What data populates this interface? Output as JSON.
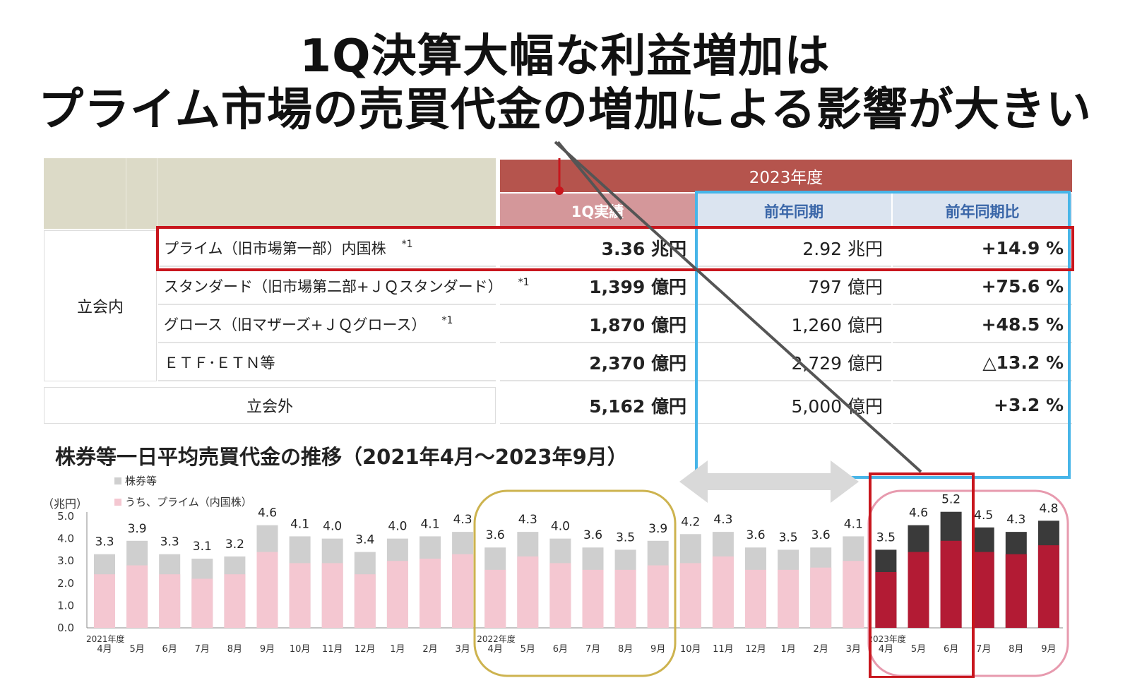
{
  "slide": {
    "headline_line1": "1Q決算大幅な利益増加は",
    "headline_line2": "プライム市場の売買代金の増加による影響が大きい"
  },
  "table": {
    "fiscal_year_header": "2023年度",
    "col_actual": "1Q実績",
    "col_prev": "前年同期",
    "col_ratio": "前年同期比",
    "group_label": "立会内",
    "rows": [
      {
        "label": "プライム（旧市場第一部）内国株",
        "note": "*1",
        "actual": "3.36 兆円",
        "prev": "2.92 兆円",
        "ratio": "+14.9 %"
      },
      {
        "label": "スタンダード（旧市場第二部+ＪＱスタンダード）",
        "note": "*1",
        "actual": "1,399 億円",
        "prev": "797 億円",
        "ratio": "+75.6 %"
      },
      {
        "label": "グロース（旧マザーズ+ＪＱグロース）",
        "note": "*1",
        "actual": "1,870 億円",
        "prev": "1,260 億円",
        "ratio": "+48.5 %"
      },
      {
        "label": "ＥＴＦ･ＥＴＮ等",
        "note": "",
        "actual": "2,370 億円",
        "prev": "2,729 億円",
        "ratio": "△13.2 %"
      }
    ],
    "offfloor": {
      "label": "立会外",
      "actual": "5,162 億円",
      "prev": "5,000 億円",
      "ratio": "+3.2 %"
    }
  },
  "colors": {
    "header_red": "#b5544d",
    "subheader_pink": "#d4979a",
    "subheader_blue": "#dbe4f0",
    "beige": "#dcdac7",
    "highlight_red": "#c8161d",
    "highlight_blue": "#47b5e8",
    "bar_gray": "#cfcfcf",
    "bar_pink": "#f4c7d1",
    "bar_dark": "#3a3a3a",
    "bar_red": "#b31b34",
    "circle_gold": "#cdb34f",
    "circle_pink": "#e79aae"
  },
  "chart_data": {
    "type": "bar",
    "title": "株券等一日平均売買代金の推移（2021年4月～2023年9月）",
    "ylabel": "（兆円）",
    "ylim": [
      0,
      5.0
    ],
    "yticks": [
      "0.0",
      "1.0",
      "2.0",
      "3.0",
      "4.0",
      "5.0"
    ],
    "legend": [
      "株券等",
      "うち、プライム（内国株）"
    ],
    "fiscal_labels": [
      "2021年度",
      "2022年度",
      "2023年度"
    ],
    "categories": [
      "4月",
      "5月",
      "6月",
      "7月",
      "8月",
      "9月",
      "10月",
      "11月",
      "12月",
      "1月",
      "2月",
      "3月",
      "4月",
      "5月",
      "6月",
      "7月",
      "8月",
      "9月",
      "10月",
      "11月",
      "12月",
      "1月",
      "2月",
      "3月",
      "4月",
      "5月",
      "6月",
      "7月",
      "8月",
      "9月"
    ],
    "series": [
      {
        "name": "株券等",
        "values": [
          3.3,
          3.9,
          3.3,
          3.1,
          3.2,
          4.6,
          4.1,
          4.0,
          3.4,
          4.0,
          4.1,
          4.3,
          3.6,
          4.3,
          4.0,
          3.6,
          3.5,
          3.9,
          4.2,
          4.3,
          3.6,
          3.5,
          3.6,
          4.1,
          3.5,
          4.6,
          5.2,
          4.5,
          4.3,
          4.8
        ],
        "labels": [
          "3.3",
          "3.9",
          "3.3",
          "3.1",
          "3.2",
          "4.6",
          "4.1",
          "4.0",
          "3.4",
          "4.0",
          "4.1",
          "4.3",
          "3.6",
          "4.3",
          "4.0",
          "3.6",
          "3.5",
          "3.9",
          "4.2",
          "4.3",
          "3.6",
          "3.5",
          "3.6",
          "4.1",
          "3.5",
          "4.6",
          "5.2",
          "4.5",
          "4.3",
          "4.8"
        ]
      },
      {
        "name": "うち、プライム（内国株）",
        "values": [
          2.4,
          2.8,
          2.4,
          2.2,
          2.4,
          3.4,
          2.9,
          2.9,
          2.4,
          3.0,
          3.1,
          3.3,
          2.6,
          3.2,
          2.9,
          2.6,
          2.6,
          2.8,
          2.9,
          3.2,
          2.6,
          2.6,
          2.7,
          3.0,
          2.5,
          3.4,
          3.9,
          3.4,
          3.3,
          3.7
        ]
      }
    ]
  }
}
